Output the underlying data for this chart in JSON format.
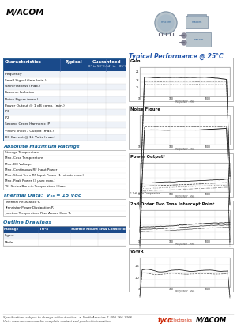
{
  "bg_color": "#ffffff",
  "macom_logo_text": "M/ACOM",
  "typical_perf_label": "Typical Performance @ 25°C",
  "typical_perf_color": "#2255aa",
  "graph_labels": [
    "Gain",
    "Noise Figure",
    "Power Output*",
    "2nd Order Two Tone Intercept Point",
    "VSWR"
  ],
  "table_header_bg": "#1a4a8a",
  "table_header_text_color": "#ffffff",
  "table_rows": [
    "Frequency",
    "Small Signal Gain (min.)",
    "Gain Flatness (max.)",
    "Reverse Isolation",
    "Noise Figure (max.)",
    "Power Output @ 1 dB comp. (min.)",
    "IP3",
    "IP2",
    "Second Order Harmonic IP",
    "VSWR: Input / Output (max.)",
    "DC Current @ 15 Volts (max.)"
  ],
  "abs_max_title": "Absolute Maximum Ratings",
  "section_title_color": "#1a6699",
  "abs_max_rows": [
    "Storage Temperature",
    "Max. Case Temperature",
    "Max. DC Voltage",
    "Max. Continuous RF Input Power",
    "Max. Short Term RF Input Power (1 minute max.)",
    "Max. Peak Power (3 μsec max.)",
    "\"S\" Series Burn-in Temperature (Case)"
  ],
  "thermal_title": "Thermal Data:  Vₒₓ = 15 Vdc",
  "thermal_rows": [
    "Thermal Resistance θⱼ",
    "Transistor Power Dissipation Pⱼ",
    "Junction Temperature Rise Above Case Tⱼ"
  ],
  "outline_title": "Outline Drawings",
  "outline_cols": [
    "Package",
    "TO-8",
    "Surface Mount",
    "SMA Connectorized"
  ],
  "outline_rows": [
    "Figure",
    "Model"
  ],
  "footer_line1": "Specifications subject to change without notice.  •  North America: 1-800-366-2266",
  "footer_line2": "Visit: www.macom.com for complete contact and product information.",
  "tyco_text": "tyco",
  "electronics_text": "| Electronics",
  "footer_text_color": "#444444",
  "guaranteed_sub1": "0° to 50°C",
  "guaranteed_sub2": "-54° to +85°C"
}
